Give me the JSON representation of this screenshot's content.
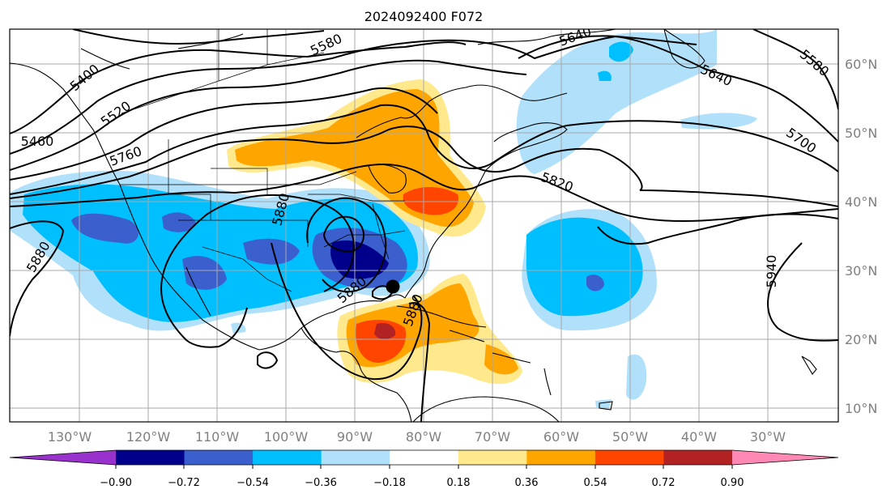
{
  "title": "2024092400 F072",
  "map": {
    "lon_range": [
      -140,
      -20
    ],
    "lat_range": [
      7,
      65
    ],
    "lon_ticks": [
      "130°W",
      "120°W",
      "110°W",
      "100°W",
      "90°W",
      "80°W",
      "70°W",
      "60°W",
      "50°W",
      "40°W",
      "30°W"
    ],
    "lat_ticks": [
      "10°N",
      "20°N",
      "30°N",
      "40°N",
      "50°N",
      "60°N"
    ],
    "gridlines": true,
    "contour_labels": [
      "5400",
      "5580",
      "5640",
      "5580",
      "5520",
      "5460",
      "5640",
      "5760",
      "5880",
      "5700",
      "5820",
      "5880",
      "5880",
      "5940",
      "5880"
    ],
    "marker": "storm-center-dot"
  },
  "colorbar": {
    "tick_labels": [
      "−0.90",
      "−0.72",
      "−0.54",
      "−0.36",
      "−0.18",
      "0.18",
      "0.36",
      "0.54",
      "0.72",
      "0.90"
    ],
    "colors": [
      "#9932cc",
      "#00008b",
      "#3b5fcd",
      "#00bfff",
      "#b0e0fa",
      "#ffffff",
      "#ffe98c",
      "#ffa500",
      "#ff4500",
      "#b22222",
      "#ff88b4"
    ],
    "extend": "both"
  }
}
